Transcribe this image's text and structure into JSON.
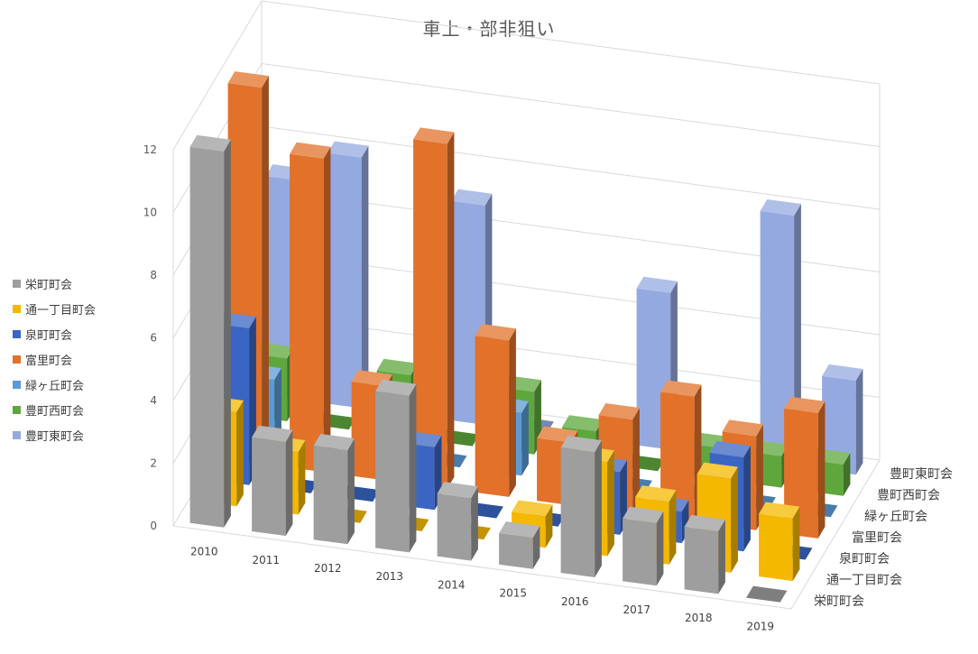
{
  "chart_data": {
    "type": "bar",
    "subtype": "3d-column",
    "title": "車上・部非狙い",
    "categories": [
      "2010",
      "2011",
      "2012",
      "2013",
      "2014",
      "2015",
      "2016",
      "2017",
      "2018",
      "2019"
    ],
    "y_ticks": [
      "0",
      "2",
      "4",
      "6",
      "8",
      "10",
      "12"
    ],
    "ylim": [
      0,
      12
    ],
    "grid": true,
    "legend_position": "left",
    "series": [
      {
        "name": "栄町町会",
        "color": "#9e9e9e",
        "values": [
          12,
          3,
          3,
          5,
          2,
          1,
          4,
          2,
          2,
          0
        ]
      },
      {
        "name": "通一丁目町会",
        "color": "#f5b800",
        "values": [
          3,
          2,
          0,
          0,
          0,
          1,
          3,
          2,
          3,
          2
        ]
      },
      {
        "name": "泉町町会",
        "color": "#3a65c3",
        "values": [
          5,
          0,
          0,
          2,
          0,
          0,
          2,
          1,
          3,
          0
        ]
      },
      {
        "name": "富里町会",
        "color": "#e2712a",
        "values": [
          12,
          10,
          3,
          11,
          5,
          2,
          3,
          4,
          3,
          4
        ]
      },
      {
        "name": "緑ヶ丘町会",
        "color": "#5b9bd5",
        "values": [
          2,
          0,
          0,
          0,
          2,
          1,
          0,
          0,
          0,
          0
        ]
      },
      {
        "name": "豊町西町会",
        "color": "#5ea73c",
        "values": [
          2,
          0,
          2,
          0,
          2,
          1,
          0,
          1,
          1,
          1
        ]
      },
      {
        "name": "豊町東町会",
        "color": "#94a9e0",
        "values": [
          7,
          8,
          0,
          7,
          0,
          0,
          5,
          0,
          8,
          3
        ]
      }
    ]
  }
}
